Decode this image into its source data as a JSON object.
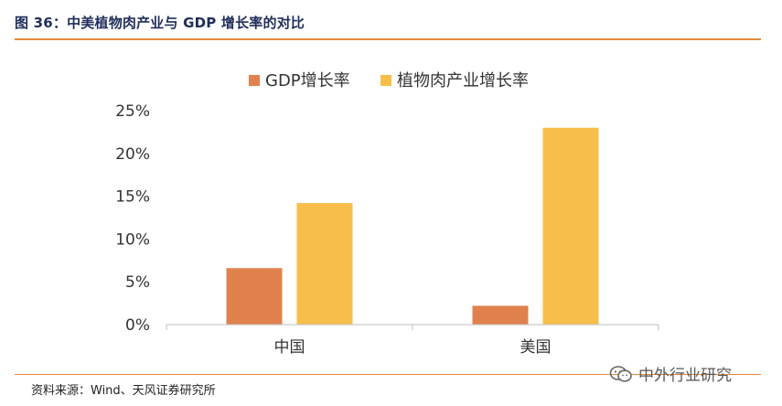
{
  "figure": {
    "title": "图 36：中美植物肉产业与 GDP 增长率的对比",
    "source": "资料来源：Wind、天风证券研究所",
    "watermark": "中外行业研究"
  },
  "chart_data": {
    "type": "bar",
    "categories": [
      "中国",
      "美国"
    ],
    "series": [
      {
        "name": "GDP增长率",
        "values": [
          0.066,
          0.022
        ],
        "color": "#e1814d"
      },
      {
        "name": "植物肉产业增长率",
        "values": [
          0.142,
          0.23
        ],
        "color": "#f8be4a"
      }
    ],
    "yticks": [
      "0%",
      "5%",
      "10%",
      "15%",
      "20%",
      "25%"
    ],
    "ylim": [
      0,
      0.25
    ],
    "legend_position": "top",
    "grid": false
  }
}
